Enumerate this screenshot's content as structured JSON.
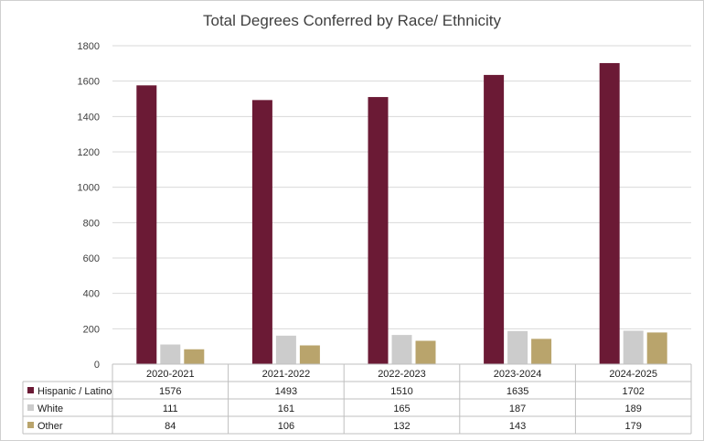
{
  "chart_data": {
    "type": "bar",
    "title": "Total Degrees Conferred by Race/ Ethnicity",
    "categories": [
      "2020-2021",
      "2021-2022",
      "2022-2023",
      "2023-2024",
      "2024-2025"
    ],
    "series": [
      {
        "name": "Hispanic / Latino",
        "color": "#6b1a35",
        "values": [
          1576,
          1493,
          1510,
          1635,
          1702
        ]
      },
      {
        "name": "White",
        "color": "#cccccc",
        "values": [
          111,
          161,
          165,
          187,
          189
        ]
      },
      {
        "name": "Other",
        "color": "#b9a46c",
        "values": [
          84,
          106,
          132,
          143,
          179
        ]
      }
    ],
    "ylim": [
      0,
      1800
    ],
    "yticks": [
      0,
      200,
      400,
      600,
      800,
      1000,
      1200,
      1400,
      1600,
      1800
    ],
    "grid": true,
    "legend": "data-table"
  }
}
